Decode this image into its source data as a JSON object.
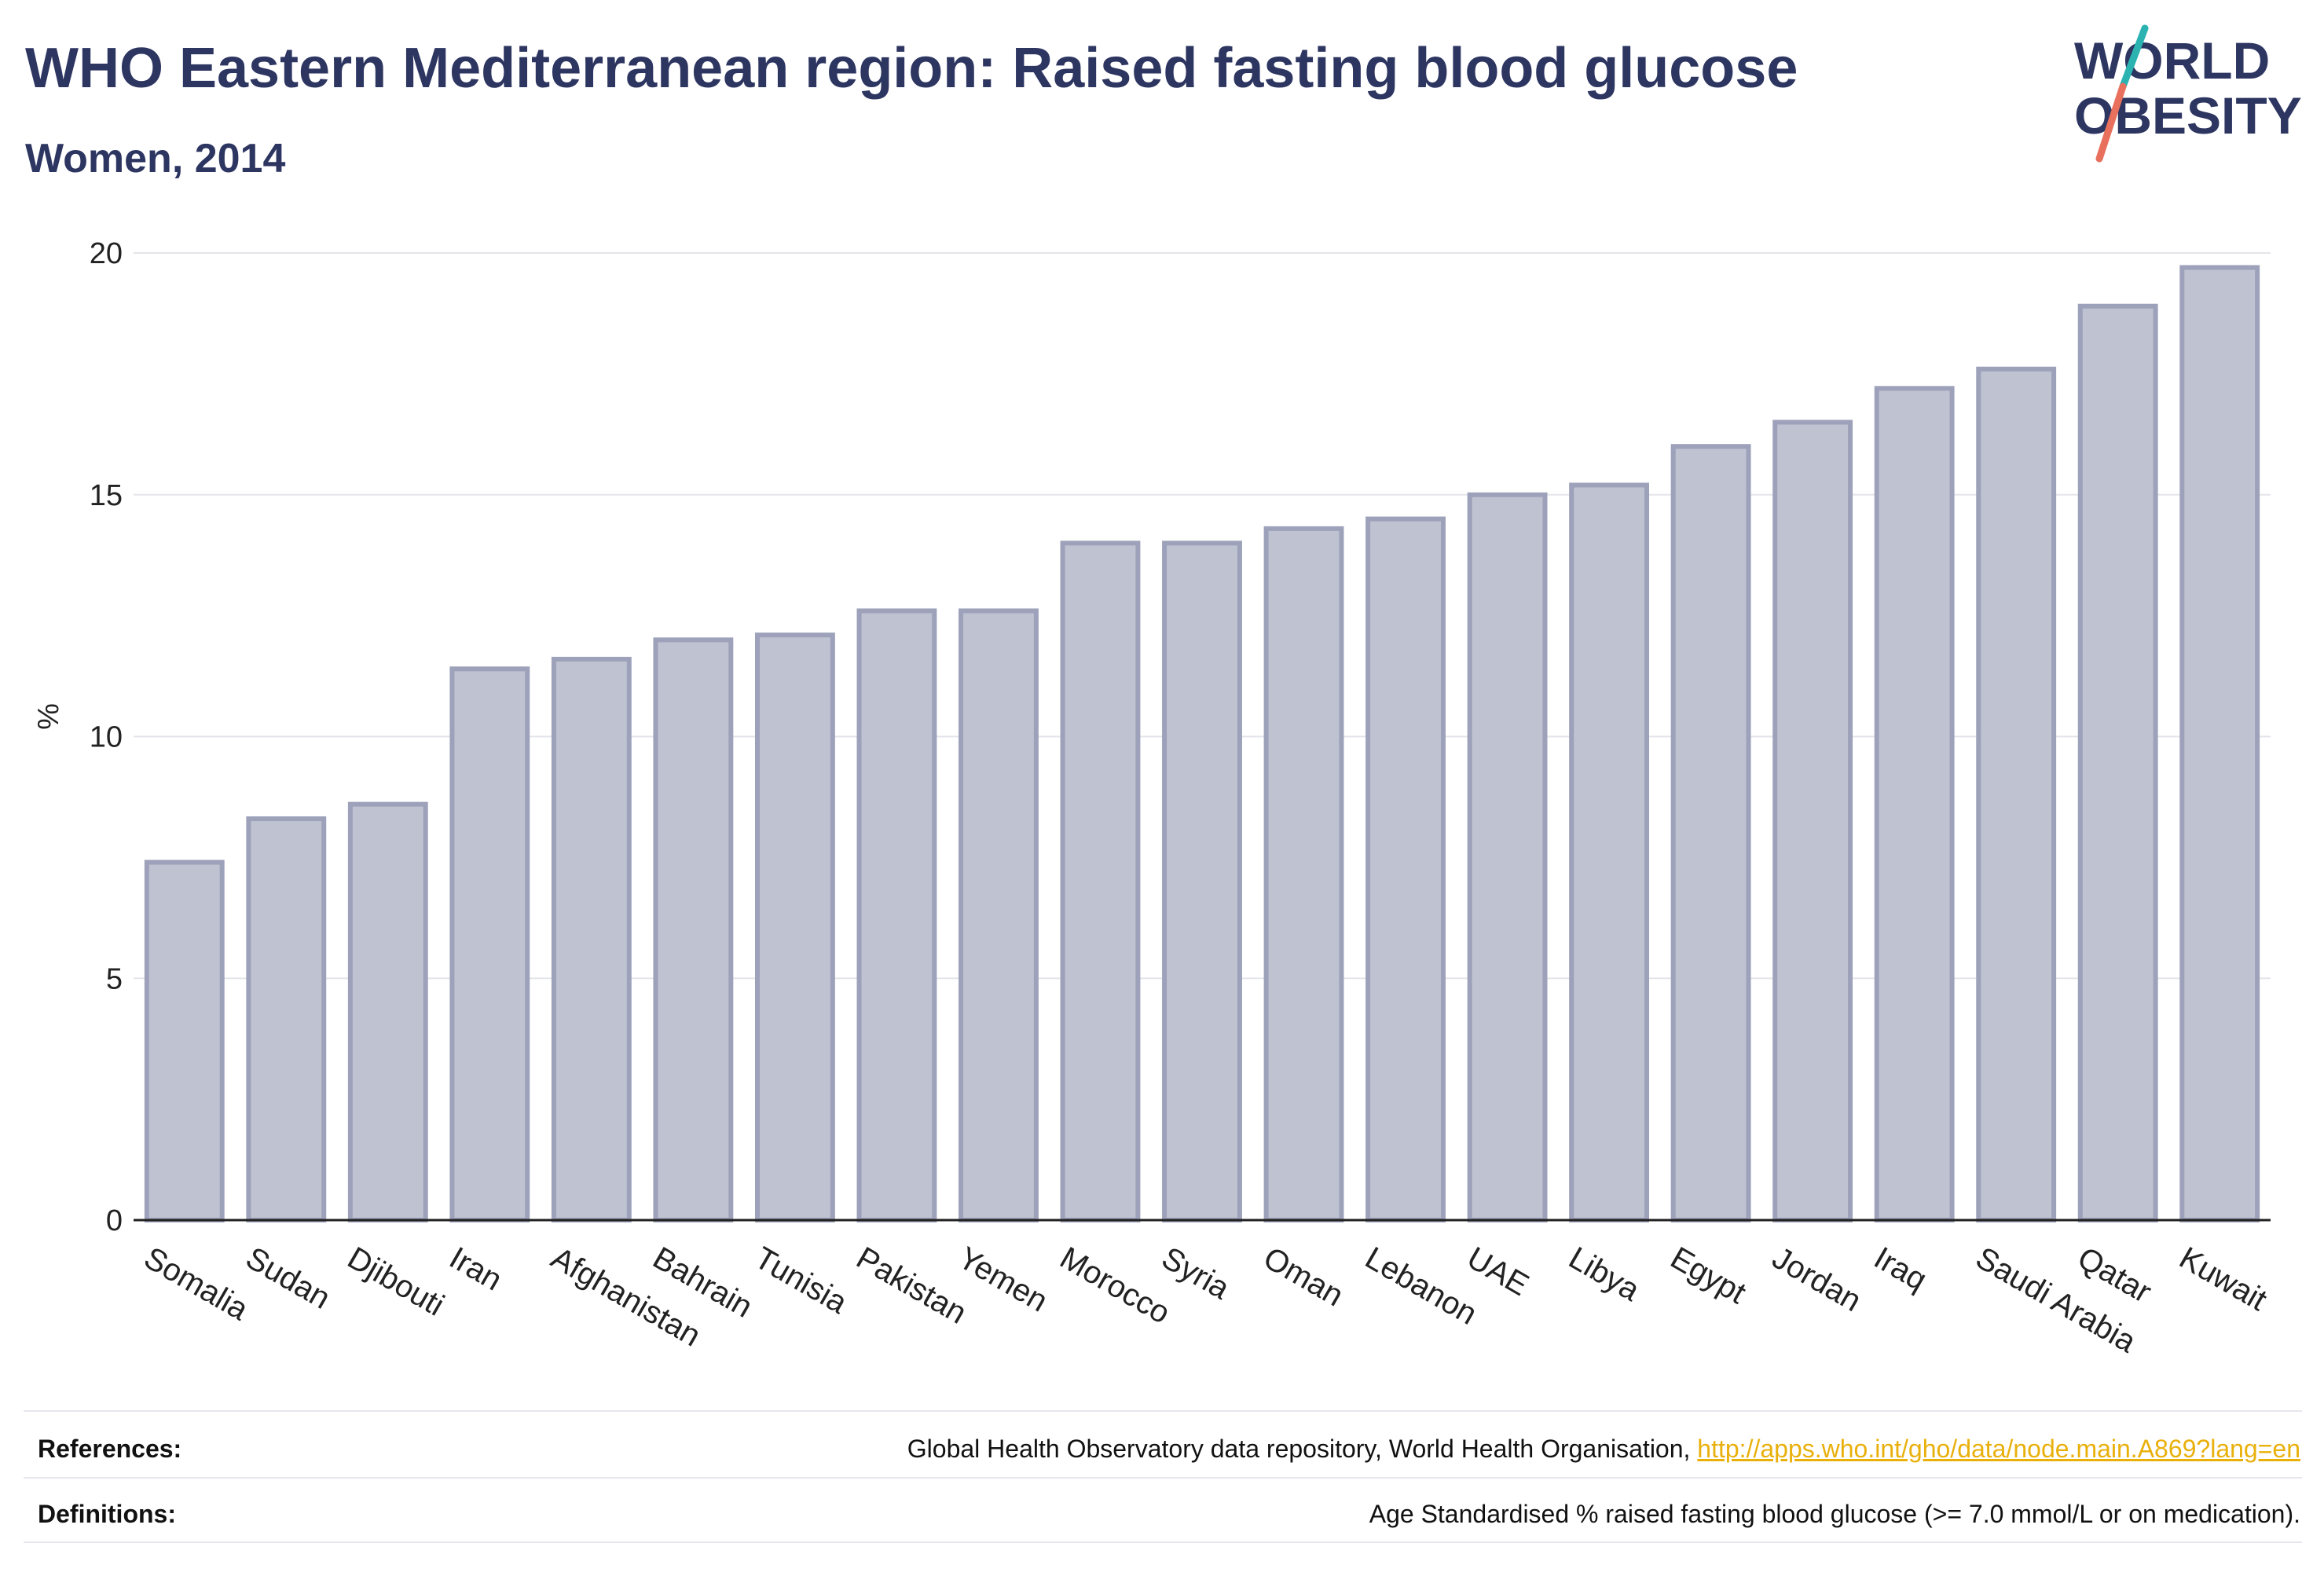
{
  "header": {
    "title": "WHO Eastern Mediterranean region: Raised fasting blood glucose",
    "subtitle": "Women, 2014"
  },
  "logo": {
    "line1": "WORLD",
    "line2": "OBESITY",
    "icon": "world-obesity-logo",
    "colors": {
      "text": "#2d3561",
      "slash_top": "#2ab3b1",
      "slash_bottom": "#e8705d"
    }
  },
  "chart_data": {
    "type": "bar",
    "title": "WHO Eastern Mediterranean region: Raised fasting blood glucose",
    "subtitle": "Women, 2014",
    "xlabel": "",
    "ylabel": "%",
    "ylim": [
      0,
      20
    ],
    "yticks": [
      0,
      5,
      10,
      15,
      20
    ],
    "grid": true,
    "legend": "none",
    "bar_color": "#bfc2d1",
    "bar_edge_color": "#9da1ba",
    "categories": [
      "Somalia",
      "Sudan",
      "Djibouti",
      "Iran",
      "Afghanistan",
      "Bahrain",
      "Tunisia",
      "Pakistan",
      "Yemen",
      "Morocco",
      "Syria",
      "Oman",
      "Lebanon",
      "UAE",
      "Libya",
      "Egypt",
      "Jordan",
      "Iraq",
      "Saudi Arabia",
      "Qatar",
      "Kuwait"
    ],
    "values": [
      7.4,
      8.3,
      8.6,
      11.4,
      11.6,
      12.0,
      12.1,
      12.6,
      12.6,
      14.0,
      14.0,
      14.3,
      14.5,
      15.0,
      15.2,
      16.0,
      16.5,
      17.2,
      17.6,
      18.9,
      19.7
    ]
  },
  "footer": {
    "references_label": "References:",
    "references_text": "Global Health Observatory data repository, World Health Organisation,",
    "references_link": "http://apps.who.int/gho/data/node.main.A869?lang=en",
    "definitions_label": "Definitions:",
    "definitions_text": "Age Standardised % raised fasting blood glucose (>= 7.0 mmol/L or on medication)."
  }
}
